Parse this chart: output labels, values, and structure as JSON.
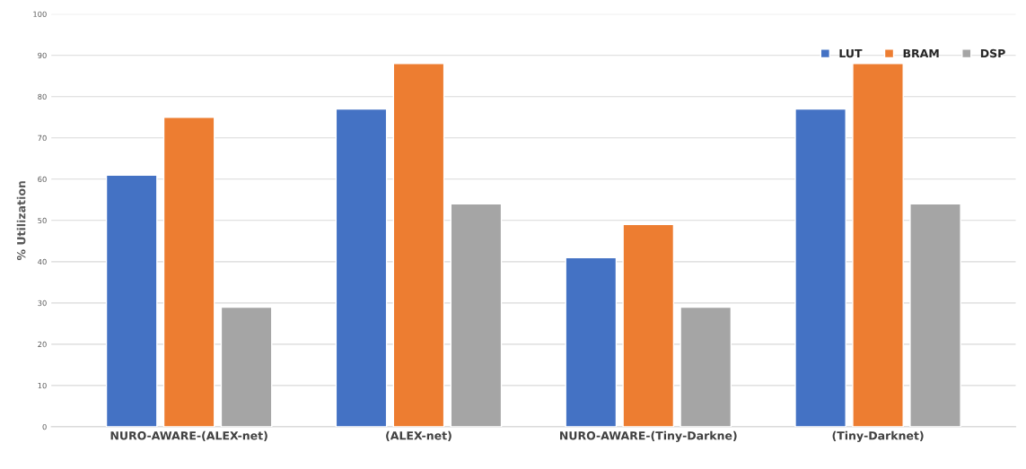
{
  "chart_data": {
    "type": "bar",
    "ylabel": "% Utilization",
    "categories": [
      "NURO-AWARE-(ALEX-net)",
      "(ALEX-net)",
      "NURO-AWARE-(Tiny-Darkne)",
      "(Tiny-Darknet)"
    ],
    "series": [
      {
        "name": "LUT",
        "color": "#4472c4",
        "values": [
          61,
          77,
          41,
          77
        ]
      },
      {
        "name": "BRAM",
        "color": "#ed7d31",
        "values": [
          75,
          88,
          49,
          88
        ]
      },
      {
        "name": "DSP",
        "color": "#a5a5a5",
        "values": [
          29,
          54,
          29,
          54
        ]
      }
    ],
    "ylim": [
      0,
      100
    ],
    "yticks": [
      0,
      10,
      20,
      30,
      40,
      50,
      60,
      70,
      80,
      90,
      100
    ],
    "grid": "y",
    "legend": "top right"
  }
}
